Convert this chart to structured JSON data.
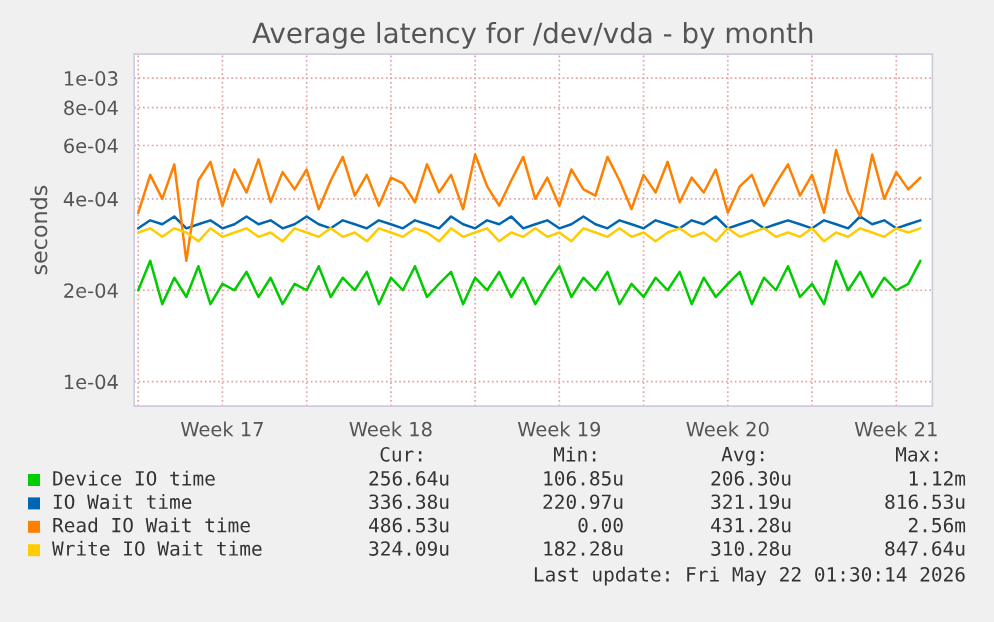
{
  "chart_data": {
    "type": "line",
    "title": "Average latency for /dev/vda - by month",
    "ylabel": "seconds",
    "x": [
      "2026-04-20T00:00",
      "2026-04-20T12:00",
      "2026-04-21T00:00",
      "2026-04-21T12:00",
      "2026-04-22T00:00",
      "2026-04-22T12:00",
      "2026-04-23T00:00",
      "2026-04-23T12:00",
      "2026-04-24T00:00",
      "2026-04-24T12:00",
      "2026-04-25T00:00",
      "2026-04-25T12:00",
      "2026-04-26T00:00",
      "2026-04-26T12:00",
      "2026-04-27T00:00",
      "2026-04-27T12:00",
      "2026-04-28T00:00",
      "2026-04-28T12:00",
      "2026-04-29T00:00",
      "2026-04-29T12:00",
      "2026-04-30T00:00",
      "2026-04-30T12:00",
      "2026-05-01T00:00",
      "2026-05-01T12:00",
      "2026-05-02T00:00",
      "2026-05-02T12:00",
      "2026-05-03T00:00",
      "2026-05-03T12:00",
      "2026-05-04T00:00",
      "2026-05-04T12:00",
      "2026-05-05T00:00",
      "2026-05-05T12:00",
      "2026-05-06T00:00",
      "2026-05-06T12:00",
      "2026-05-07T00:00",
      "2026-05-07T12:00",
      "2026-05-08T00:00",
      "2026-05-08T12:00",
      "2026-05-09T00:00",
      "2026-05-09T12:00",
      "2026-05-10T00:00",
      "2026-05-10T12:00",
      "2026-05-11T00:00",
      "2026-05-11T12:00",
      "2026-05-12T00:00",
      "2026-05-12T12:00",
      "2026-05-13T00:00",
      "2026-05-13T12:00",
      "2026-05-14T00:00",
      "2026-05-14T12:00",
      "2026-05-15T00:00",
      "2026-05-15T12:00",
      "2026-05-16T00:00",
      "2026-05-16T12:00",
      "2026-05-17T00:00",
      "2026-05-17T12:00",
      "2026-05-18T00:00",
      "2026-05-18T12:00",
      "2026-05-19T00:00",
      "2026-05-19T12:00",
      "2026-05-20T00:00",
      "2026-05-20T12:00",
      "2026-05-21T00:00",
      "2026-05-21T12:00",
      "2026-05-22T00:00",
      "2026-05-22T12:00"
    ],
    "series": [
      {
        "name": "Device IO time",
        "color": "#00cc00",
        "values": [
          0.0002,
          0.00025,
          0.00018,
          0.00022,
          0.00019,
          0.00024,
          0.00018,
          0.00021,
          0.0002,
          0.00023,
          0.00019,
          0.00022,
          0.00018,
          0.00021,
          0.0002,
          0.00024,
          0.00019,
          0.00022,
          0.0002,
          0.00023,
          0.00018,
          0.00022,
          0.0002,
          0.00024,
          0.00019,
          0.00021,
          0.00023,
          0.00018,
          0.00022,
          0.0002,
          0.00023,
          0.00019,
          0.00022,
          0.00018,
          0.00021,
          0.00024,
          0.00019,
          0.00022,
          0.0002,
          0.00023,
          0.00018,
          0.00021,
          0.00019,
          0.00022,
          0.0002,
          0.00023,
          0.00018,
          0.00022,
          0.00019,
          0.00021,
          0.00023,
          0.00018,
          0.00022,
          0.0002,
          0.00024,
          0.00019,
          0.00021,
          0.00018,
          0.00025,
          0.0002,
          0.00023,
          0.00019,
          0.00022,
          0.0002,
          0.00021,
          0.00025
        ]
      },
      {
        "name": "IO Wait time",
        "color": "#0066b3",
        "values": [
          0.00032,
          0.00034,
          0.00033,
          0.00035,
          0.00032,
          0.00033,
          0.00034,
          0.00032,
          0.00033,
          0.00035,
          0.00033,
          0.00034,
          0.00032,
          0.00033,
          0.00035,
          0.00033,
          0.00032,
          0.00034,
          0.00033,
          0.00032,
          0.00034,
          0.00033,
          0.00032,
          0.00034,
          0.00033,
          0.00032,
          0.00035,
          0.00033,
          0.00032,
          0.00034,
          0.00033,
          0.00035,
          0.00032,
          0.00033,
          0.00034,
          0.00032,
          0.00033,
          0.00035,
          0.00033,
          0.00032,
          0.00034,
          0.00033,
          0.00032,
          0.00034,
          0.00033,
          0.00032,
          0.00034,
          0.00033,
          0.00035,
          0.00032,
          0.00033,
          0.00034,
          0.00032,
          0.00033,
          0.00034,
          0.00033,
          0.00032,
          0.00034,
          0.00033,
          0.00032,
          0.00035,
          0.00033,
          0.00034,
          0.00032,
          0.00033,
          0.00034
        ]
      },
      {
        "name": "Read IO Wait time",
        "color": "#ff8000",
        "values": [
          0.00036,
          0.00048,
          0.0004,
          0.00052,
          0.00025,
          0.00046,
          0.00053,
          0.00038,
          0.0005,
          0.00042,
          0.00054,
          0.00039,
          0.00049,
          0.00043,
          0.0005,
          0.00037,
          0.00046,
          0.00055,
          0.00041,
          0.00048,
          0.00038,
          0.00047,
          0.00045,
          0.00039,
          0.00052,
          0.00042,
          0.00048,
          0.00037,
          0.00056,
          0.00044,
          0.00038,
          0.00046,
          0.00055,
          0.0004,
          0.00047,
          0.00038,
          0.0005,
          0.00043,
          0.00041,
          0.00055,
          0.00046,
          0.00037,
          0.00048,
          0.00042,
          0.00053,
          0.00039,
          0.00047,
          0.00042,
          0.0005,
          0.00036,
          0.00044,
          0.00048,
          0.00038,
          0.00045,
          0.00052,
          0.00041,
          0.00048,
          0.00036,
          0.00058,
          0.00042,
          0.00035,
          0.00056,
          0.0004,
          0.00049,
          0.00043,
          0.00047
        ]
      },
      {
        "name": "Write IO Wait time",
        "color": "#ffcc00",
        "values": [
          0.00031,
          0.00032,
          0.0003,
          0.00032,
          0.00031,
          0.00029,
          0.00032,
          0.0003,
          0.00031,
          0.00032,
          0.0003,
          0.00031,
          0.00029,
          0.00032,
          0.00031,
          0.0003,
          0.00032,
          0.0003,
          0.00031,
          0.00029,
          0.00032,
          0.00031,
          0.0003,
          0.00032,
          0.00031,
          0.00029,
          0.00032,
          0.0003,
          0.00031,
          0.00032,
          0.00029,
          0.00031,
          0.0003,
          0.00032,
          0.0003,
          0.00031,
          0.00029,
          0.00032,
          0.00031,
          0.0003,
          0.00032,
          0.0003,
          0.00031,
          0.00029,
          0.00031,
          0.00032,
          0.0003,
          0.00031,
          0.00029,
          0.00032,
          0.0003,
          0.00031,
          0.00032,
          0.0003,
          0.00031,
          0.0003,
          0.00032,
          0.00029,
          0.00031,
          0.0003,
          0.00032,
          0.00031,
          0.0003,
          0.00032,
          0.00031,
          0.00032
        ]
      }
    ],
    "log": "y",
    "ylim": [
      8.3e-05,
      0.0012
    ],
    "yticks": [
      {
        "value": 0.0001,
        "label": "1e-04"
      },
      {
        "value": 0.0002,
        "label": "2e-04"
      },
      {
        "value": 0.0004,
        "label": "4e-04"
      },
      {
        "value": 0.0006,
        "label": "6e-04"
      },
      {
        "value": 0.0008,
        "label": "8e-04"
      },
      {
        "value": 0.001,
        "label": "1e-03"
      }
    ],
    "xlim": [
      "2026-04-19T20:00",
      "2026-05-23T00:00"
    ],
    "xticks": [
      {
        "value": "2026-04-20",
        "label": null
      },
      {
        "value": "2026-04-23T12:00",
        "label": "Week 17"
      },
      {
        "value": "2026-04-27",
        "label": null
      },
      {
        "value": "2026-04-30T12:00",
        "label": "Week 18"
      },
      {
        "value": "2026-05-04",
        "label": null
      },
      {
        "value": "2026-05-07T12:00",
        "label": "Week 19"
      },
      {
        "value": "2026-05-11",
        "label": null
      },
      {
        "value": "2026-05-14T12:00",
        "label": "Week 20"
      },
      {
        "value": "2026-05-18",
        "label": null
      },
      {
        "value": "2026-05-21T12:00",
        "label": "Week 21"
      }
    ],
    "grid": true,
    "legend": "bottom",
    "annotations": [
      "Cur:",
      "Min:",
      "Avg:",
      "Max:",
      "256.64u",
      "106.85u",
      "206.30u",
      "1.12m",
      "336.38u",
      "220.97u",
      "321.19u",
      "816.53u",
      "486.53u",
      "0.00",
      "431.28u",
      "2.56m",
      "324.09u",
      "182.28u",
      "310.28u",
      "847.64u",
      "Last update: Fri May 22 01:30:14 2026"
    ]
  }
}
